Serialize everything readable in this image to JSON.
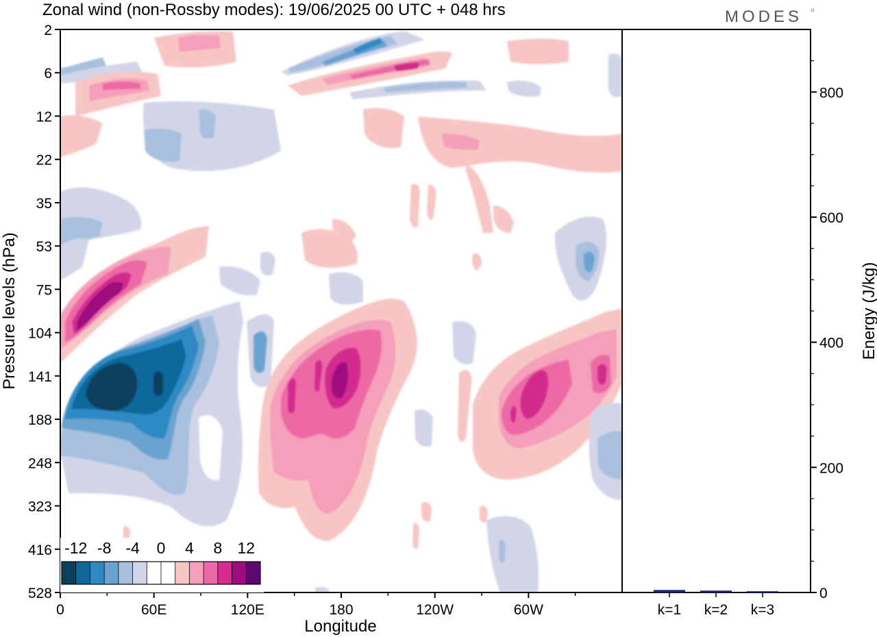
{
  "title": "Zonal wind (non-Rossby modes):  19/06/2025  00 UTC  + 048 hrs",
  "logo": "MODES",
  "chart_data": [
    {
      "type": "heatmap",
      "xlabel": "Longitude",
      "ylabel": "Pressure levels (hPa)",
      "x_ticks": [
        "0",
        "60E",
        "120E",
        "180",
        "120W",
        "60W"
      ],
      "x_tick_degrees": [
        0,
        60,
        120,
        180,
        240,
        300
      ],
      "x_range_degrees": [
        0,
        360
      ],
      "y_ticks": [
        "2",
        "6",
        "12",
        "22",
        "35",
        "53",
        "75",
        "104",
        "141",
        "188",
        "248",
        "323",
        "416",
        "528"
      ],
      "colorbar": {
        "labels": [
          "-12",
          "-8",
          "-4",
          "0",
          "4",
          "8",
          "12"
        ],
        "levels": [
          -14,
          -12,
          -10,
          -8,
          -6,
          -4,
          -2,
          2,
          4,
          6,
          8,
          10,
          12,
          14
        ],
        "colors": [
          "#0b3f5e",
          "#11679b",
          "#2f8ac4",
          "#6aa3cf",
          "#a8c0de",
          "#d2d5e8",
          "#ffffff",
          "#ffffff",
          "#f7c6c4",
          "#f59fba",
          "#ec69a6",
          "#d32b8e",
          "#9e0c7f",
          "#5e0872"
        ]
      },
      "features": [
        {
          "value": -13,
          "lon": 30,
          "level": "141"
        },
        {
          "value": 11,
          "lon": 25,
          "level": "104"
        },
        {
          "value": 10,
          "lon": 178,
          "level": "141"
        },
        {
          "value": 8,
          "lon": 150,
          "level": "188"
        },
        {
          "value": 8,
          "lon": 295,
          "level": "141"
        },
        {
          "value": 6,
          "lon": 345,
          "level": "141"
        },
        {
          "value": -9,
          "lon": 195,
          "level": "2"
        },
        {
          "value": 8,
          "lon": 225,
          "level": "6"
        },
        {
          "value": 8,
          "lon": 40,
          "level": "6"
        },
        {
          "value": -6,
          "lon": 340,
          "level": "53"
        },
        {
          "value": -4,
          "lon": 345,
          "level": "248"
        }
      ]
    },
    {
      "type": "bar",
      "ylabel": "Energy (J/kg)",
      "ylim": [
        0,
        900
      ],
      "y_ticks": [
        "0",
        "200",
        "400",
        "600",
        "800"
      ],
      "y_tick_values": [
        0,
        200,
        400,
        600,
        800
      ],
      "categories": [
        "k=1",
        "k=2",
        "k=3"
      ],
      "values": [
        4,
        3,
        2
      ],
      "bar_color": "#1a237e"
    }
  ]
}
